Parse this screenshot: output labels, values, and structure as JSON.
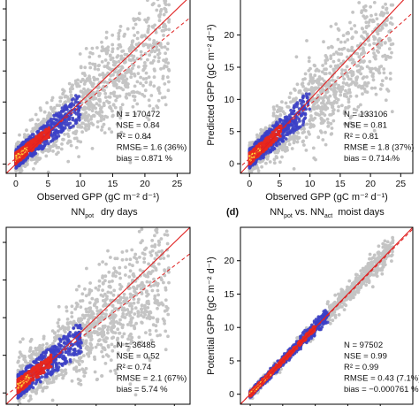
{
  "colors": {
    "scatter_gray": "#c4c4c4",
    "density_blue": "#3b3fc8",
    "density_red": "#e8281e",
    "density_yellow": "#ffd23a",
    "one_to_one_line": "#e02020",
    "regression_line": "#e02020"
  },
  "chart_data": [
    {
      "type": "scatter",
      "panel": "top-left",
      "title": "",
      "xlabel": "Observed GPP (gC m⁻² d⁻¹)",
      "ylabel": "",
      "xlim": [
        -1.5,
        27
      ],
      "ylim": [
        -1.5,
        27
      ],
      "xticks": [
        "0",
        "5",
        "10",
        "15",
        "20",
        "25"
      ],
      "yticks": [],
      "regression": {
        "slope": 0.84,
        "intercept": 0.9
      },
      "stats": [
        "N = 170472",
        "NSE = 0.84",
        "R² = 0.84",
        "RMSE = 1.6 (36%)",
        "bias = 0.871 %"
      ]
    },
    {
      "type": "scatter",
      "panel": "top-right",
      "title": "",
      "xlabel": "Observed GPP (gC m⁻² d⁻¹)",
      "ylabel": "Predicted GPP (gC m⁻² d⁻¹)",
      "xlim": [
        -1.5,
        27
      ],
      "ylim": [
        -1.5,
        26
      ],
      "xticks": [
        "0",
        "5",
        "10",
        "15",
        "20",
        "25"
      ],
      "yticks": [
        "0",
        "5",
        "10",
        "15",
        "20"
      ],
      "regression": {
        "slope": 0.84,
        "intercept": 0.8
      },
      "stats": [
        "N = 133106",
        "NSE = 0.81",
        "R² = 0.81",
        "RMSE = 1.8 (37%)",
        "bias = 0.714 %"
      ]
    },
    {
      "type": "scatter",
      "panel": "bottom-left",
      "title": "NNpot dry days",
      "xlabel": "",
      "ylabel": "",
      "xlim": [
        -1.5,
        22
      ],
      "ylim": [
        -1.5,
        22
      ],
      "xticks": [],
      "yticks": [],
      "regression": {
        "slope": 0.8,
        "intercept": 0.9
      },
      "stats": [
        "N = 36485",
        "NSE = 0.52",
        "R² = 0.74",
        "RMSE = 2.1 (67%)",
        "bias = 5.74 %"
      ]
    },
    {
      "type": "scatter",
      "panel": "bottom-right",
      "title": "NNpot vs. NNact moist days",
      "xlabel": "",
      "ylabel": "Potential GPP (gC m⁻² d⁻¹)",
      "xlim": [
        -1.5,
        25
      ],
      "ylim": [
        -1.5,
        25
      ],
      "xticks": [],
      "yticks": [
        "0",
        "5",
        "10",
        "15",
        "20"
      ],
      "regression": {
        "slope": 0.99,
        "intercept": 0.0
      },
      "stats": [
        "N = 97502",
        "NSE = 0.99",
        "R² = 0.99",
        "RMSE = 0.43 (7.1%)",
        "bias = −0.000761 %"
      ]
    }
  ],
  "panel_labels": [
    "(d)"
  ],
  "bottom_titles": {
    "left": {
      "main": "NN",
      "sub": "pot",
      "rest": "dry days"
    },
    "right": {
      "main": "NN",
      "sub": "pot",
      "mid": "vs. NN",
      "sub2": "act",
      "rest": "moist days"
    }
  }
}
